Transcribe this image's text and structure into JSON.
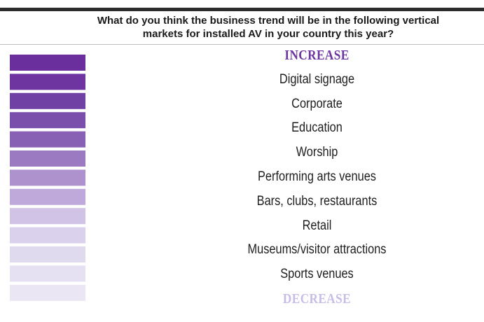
{
  "chart_data": {
    "type": "table",
    "title": "What do you think the business trend will be in the following vertical markets for installed AV in your country this year?",
    "scale": {
      "top_label": "INCREASE",
      "bottom_label": "DECREASE"
    },
    "categories": [
      "Digital signage",
      "Corporate",
      "Education",
      "Worship",
      "Performing arts venues",
      "Bars, clubs, restaurants",
      "Retail",
      "Museums/visitor attractions",
      "Sports venues"
    ],
    "colors": {
      "top_label": "#6b36a2",
      "bottom_label": "#c7bde6",
      "gradient": [
        "#6a2f9c",
        "#6e35a0",
        "#7140a4",
        "#7a4eab",
        "#8861b4",
        "#9b7ac1",
        "#ad92cd",
        "#bea9da",
        "#d0c3e6",
        "#dad2ec",
        "#e0daef",
        "#e6e1f2",
        "#eae6f4"
      ]
    }
  }
}
